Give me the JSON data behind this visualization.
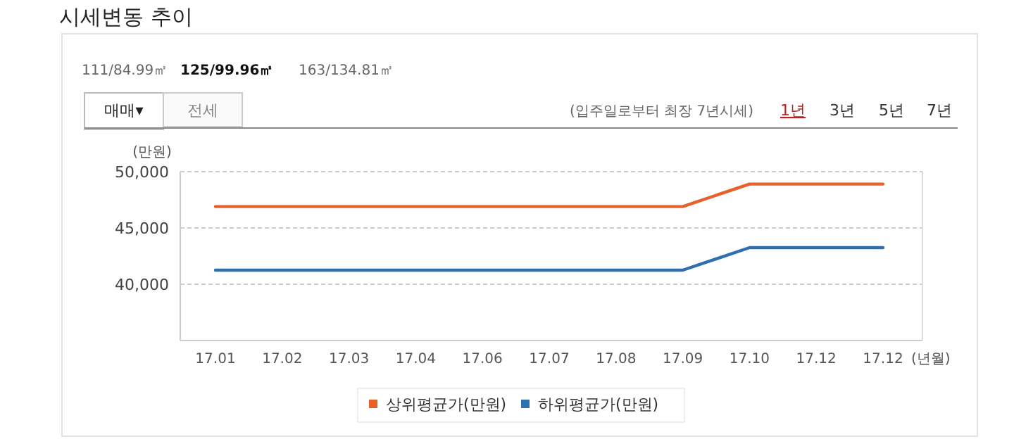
{
  "chart_data": {
    "type": "line",
    "title": "시세변동 추이",
    "annotations": [
      "111/84.99㎡",
      "125/99.96㎡",
      "163/134.81㎡",
      "매매▾",
      "전세",
      "(입주일로부터 최장 7년시세)",
      "1년",
      "3년",
      "5년",
      "7년"
    ],
    "ylabel": "(만원)",
    "xlabel": "(년월)",
    "categories": [
      "17.01",
      "17.02",
      "17.03",
      "17.04",
      "17.06",
      "17.07",
      "17.08",
      "17.09",
      "17.10",
      "17.12",
      "17.12"
    ],
    "series": [
      {
        "name": "상위평균가(만원)",
        "color": "#e8602c",
        "values": [
          46900,
          46900,
          46900,
          46900,
          46900,
          46900,
          46900,
          46900,
          48900,
          48900,
          48900
        ]
      },
      {
        "name": "하위평균가(만원)",
        "color": "#2f6fb0",
        "values": [
          41250,
          41250,
          41250,
          41250,
          41250,
          41250,
          41250,
          41250,
          43250,
          43250,
          43250
        ]
      }
    ],
    "ylim": [
      35000,
      50000
    ],
    "yticks": [
      {
        "value": 35000,
        "label": null
      },
      {
        "value": 40000,
        "label": "40,000"
      },
      {
        "value": 45000,
        "label": "45,000"
      },
      {
        "value": 50000,
        "label": "50,000"
      }
    ],
    "grid": "y",
    "legend": "bottom",
    "marker": "none",
    "line_style": "solid"
  }
}
